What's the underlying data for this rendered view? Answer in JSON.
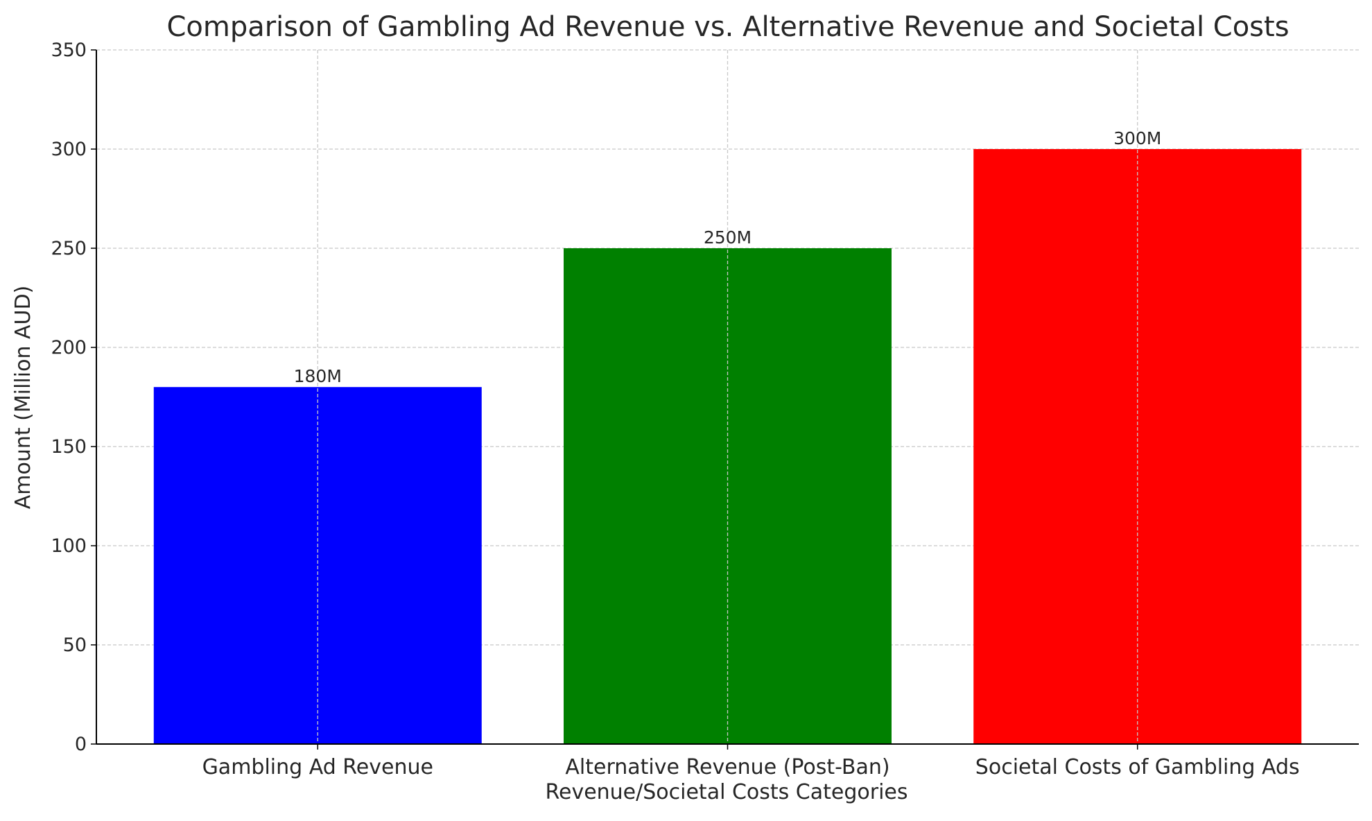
{
  "chart_data": {
    "type": "bar",
    "title": "Comparison of Gambling Ad Revenue vs. Alternative Revenue and Societal Costs",
    "xlabel": "Revenue/Societal Costs Categories",
    "ylabel": "Amount (Million AUD)",
    "categories": [
      "Gambling Ad Revenue",
      "Alternative Revenue (Post-Ban)",
      "Societal Costs of Gambling Ads"
    ],
    "values": [
      180,
      250,
      300
    ],
    "data_labels": [
      "180M",
      "250M",
      "300M"
    ],
    "colors": [
      "#0000ff",
      "#008000",
      "#ff0000"
    ],
    "ylim": [
      0,
      350
    ],
    "yticks": [
      0,
      50,
      100,
      150,
      200,
      250,
      300,
      350
    ],
    "grid": true
  }
}
